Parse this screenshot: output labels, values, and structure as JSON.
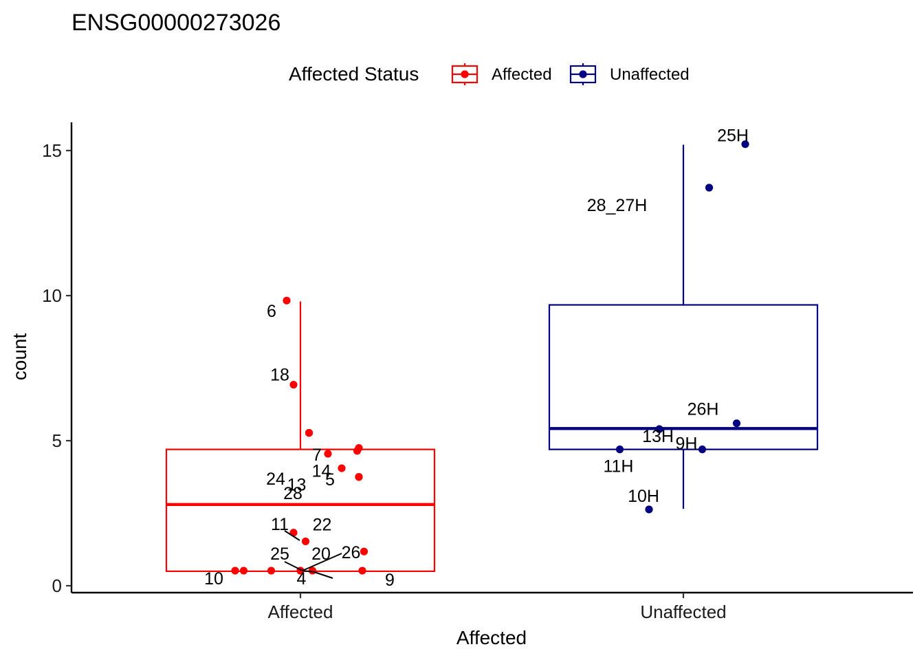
{
  "chart_data": {
    "type": "box",
    "title": "ENSG00000273026",
    "xlabel": "Affected",
    "ylabel": "count",
    "ylim": [
      -0.3,
      16
    ],
    "y_ticks": [
      0,
      5,
      10,
      15
    ],
    "legend": {
      "title": "Affected Status",
      "position": "top",
      "entries": [
        {
          "name": "Affected",
          "color": "#FF0000"
        },
        {
          "name": "Unaffected",
          "color": "#000080"
        }
      ]
    },
    "categories": [
      "Affected",
      "Unaffected"
    ],
    "groups": [
      {
        "name": "Affected",
        "color": "#FF0000",
        "box": {
          "min": 0.5,
          "q1": 0.5,
          "median": 2.8,
          "q3": 4.7,
          "max": 9.8
        },
        "points": [
          {
            "label": "6",
            "y": 9.83,
            "xj": -0.04
          },
          {
            "label": "18",
            "y": 6.93,
            "xj": -0.02
          },
          {
            "label": "14",
            "y": 5.27,
            "xj": 0.025
          },
          {
            "label": "13",
            "y": 5.27,
            "xj": 0.025
          },
          {
            "label": "7",
            "y": 4.55,
            "xj": 0.08
          },
          {
            "label": "",
            "y": 4.75,
            "xj": 0.17
          },
          {
            "label": "",
            "y": 4.65,
            "xj": 0.165
          },
          {
            "label": "24",
            "y": 4.05,
            "xj": 0.12
          },
          {
            "label": "5",
            "y": 3.75,
            "xj": 0.17
          },
          {
            "label": "28",
            "y": 3.75,
            "xj": 0.17
          },
          {
            "label": "11",
            "y": 1.83,
            "xj": -0.02
          },
          {
            "label": "22",
            "y": 1.53,
            "xj": 0.015
          },
          {
            "label": "26",
            "y": 1.18,
            "xj": 0.185
          },
          {
            "label": "25",
            "y": 0.52,
            "xj": 0.0
          },
          {
            "label": "20",
            "y": 0.52,
            "xj": 0.0
          },
          {
            "label": "10",
            "y": 0.52,
            "xj": -0.19
          },
          {
            "label": "4",
            "y": 0.52,
            "xj": 0.035
          },
          {
            "label": "9",
            "y": 0.52,
            "xj": 0.18
          },
          {
            "label": "",
            "y": 0.52,
            "xj": -0.165
          },
          {
            "label": "",
            "y": 0.52,
            "xj": -0.085
          }
        ]
      },
      {
        "name": "Unaffected",
        "color": "#000080",
        "box": {
          "min": 2.65,
          "q1": 4.7,
          "median": 5.42,
          "q3": 9.68,
          "max": 15.2
        },
        "points": [
          {
            "label": "25H",
            "y": 15.22,
            "xj": 0.18
          },
          {
            "label": "28_27H",
            "y": 13.72,
            "xj": 0.075
          },
          {
            "label": "26H",
            "y": 5.6,
            "xj": 0.155
          },
          {
            "label": "13H",
            "y": 5.4,
            "xj": -0.07
          },
          {
            "label": "9H",
            "y": 4.7,
            "xj": 0.055
          },
          {
            "label": "11H",
            "y": 4.7,
            "xj": -0.185
          },
          {
            "label": "10H",
            "y": 2.63,
            "xj": -0.1
          }
        ]
      }
    ]
  }
}
